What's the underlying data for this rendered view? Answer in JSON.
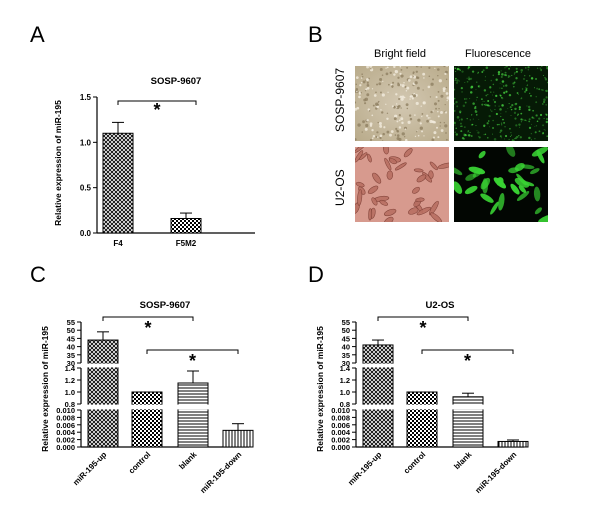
{
  "figure": {
    "panels": [
      "A",
      "B",
      "C",
      "D"
    ]
  },
  "panel_b": {
    "column_headers": [
      "Bright field",
      "Fluorescence"
    ],
    "row_headers": [
      "SOSP-9607",
      "U2-OS"
    ]
  },
  "chart_data": [
    {
      "panel": "A",
      "type": "bar",
      "title": "SOSP-9607",
      "ylabel": "Relative expression of miR-195",
      "categories": [
        "F4",
        "F5M2"
      ],
      "values": [
        1.1,
        0.16
      ],
      "errors": [
        0.12,
        0.06
      ],
      "ylim": [
        0,
        1.5
      ],
      "yticks": [
        "0.0",
        "0.5",
        "1.0",
        "1.5"
      ],
      "bar_patterns": [
        "crosshatch",
        "checker"
      ],
      "significance": [
        {
          "from": "F4",
          "to": "F5M2",
          "label": "*"
        }
      ]
    },
    {
      "panel": "C",
      "type": "bar",
      "title": "SOSP-9607",
      "ylabel": "Relative expression of miR-195",
      "broken_axis": true,
      "categories": [
        "miR-195-up",
        "control",
        "blank",
        "miR-195-down"
      ],
      "values": [
        44,
        1.0,
        1.15,
        0.0045
      ],
      "errors": [
        5,
        0,
        0.2,
        0.0018
      ],
      "segments": [
        {
          "range": [
            0,
            0.01
          ],
          "ticks": [
            "0.000",
            "0.002",
            "0.004",
            "0.006",
            "0.008",
            "0.010"
          ]
        },
        {
          "range": [
            0.8,
            1.4
          ],
          "ticks": [
            "0.8",
            "1.0",
            "1.2",
            "1.4"
          ]
        },
        {
          "range": [
            30,
            55
          ],
          "ticks": [
            "30",
            "35",
            "40",
            "45",
            "50",
            "55"
          ]
        }
      ],
      "bar_patterns": [
        "crosshatch",
        "checker",
        "horizontal",
        "vertical"
      ],
      "significance": [
        {
          "from": "miR-195-up",
          "to": "blank",
          "label": "*"
        },
        {
          "from": "control",
          "to": "miR-195-down",
          "label": "*"
        }
      ]
    },
    {
      "panel": "D",
      "type": "bar",
      "title": "U2-OS",
      "ylabel": "Relative expression of miR-195",
      "broken_axis": true,
      "categories": [
        "miR-195-up",
        "control",
        "blank",
        "miR-195-down"
      ],
      "values": [
        41,
        1.0,
        0.92,
        0.0015
      ],
      "errors": [
        3,
        0,
        0.06,
        0.0004
      ],
      "segments": [
        {
          "range": [
            0,
            0.01
          ],
          "ticks": [
            "0.000",
            "0.002",
            "0.004",
            "0.006",
            "0.008",
            "0.010"
          ]
        },
        {
          "range": [
            0.8,
            1.4
          ],
          "ticks": [
            "0.8",
            "1.0",
            "1.2",
            "1.4"
          ]
        },
        {
          "range": [
            30,
            55
          ],
          "ticks": [
            "30",
            "35",
            "40",
            "45",
            "50",
            "55"
          ]
        }
      ],
      "bar_patterns": [
        "crosshatch",
        "checker",
        "horizontal",
        "vertical"
      ],
      "significance": [
        {
          "from": "miR-195-up",
          "to": "blank",
          "label": "*"
        },
        {
          "from": "control",
          "to": "miR-195-down",
          "label": "*"
        }
      ]
    }
  ]
}
